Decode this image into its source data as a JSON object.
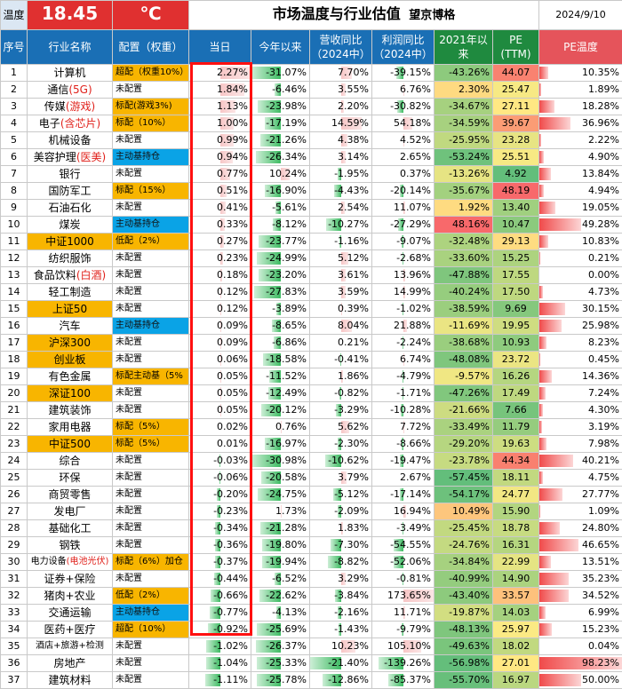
{
  "header": {
    "temp_label": "温度",
    "temp_value": "18.45",
    "temp_unit": "℃",
    "title": "市场温度与行业估值",
    "brand": "望京博格",
    "date": "2024/9/10"
  },
  "columns": [
    "序号",
    "行业名称",
    "配置（权重）",
    "当日",
    "今年以来",
    "营收同比\n（2024中）",
    "利润同比\n（2024中）",
    "2021年以来",
    "PE\n(TTM)",
    "PE温度"
  ],
  "colors": {
    "header_blue": "#1a6fb5",
    "header_green": "#1f8a3f",
    "header_red": "#e5545b",
    "alloc_orange": "#f8b500",
    "alloc_blue": "#0aa3e6",
    "highlight_box": "#ff1010"
  },
  "rows": [
    {
      "n": "1",
      "name": "计算机",
      "name_hl": "",
      "name_style": "",
      "alloc": "超配（权重10%）",
      "alloc_style": "orange",
      "day": "2.27%",
      "ytd": "-31.07%",
      "rev": "7.70%",
      "profit": "-39.15%",
      "since": "-43.26%",
      "pe": "44.07",
      "pet": "10.35%"
    },
    {
      "n": "2",
      "name": "通信",
      "name_hl": "(5G)",
      "name_style": "",
      "alloc": "未配置",
      "alloc_style": "",
      "day": "1.84%",
      "ytd": "-6.46%",
      "rev": "3.55%",
      "profit": "6.76%",
      "since": "2.30%",
      "pe": "25.47",
      "pet": "1.89%"
    },
    {
      "n": "3",
      "name": "传媒",
      "name_hl": "(游戏)",
      "name_style": "",
      "alloc": "标配(游戏3%)",
      "alloc_style": "orange",
      "day": "1.13%",
      "ytd": "-23.98%",
      "rev": "2.20%",
      "profit": "-30.82%",
      "since": "-34.67%",
      "pe": "27.11",
      "pet": "18.28%"
    },
    {
      "n": "4",
      "name": "电子",
      "name_hl": "(含芯片)",
      "name_style": "",
      "alloc": "标配（10%）",
      "alloc_style": "orange",
      "day": "1.00%",
      "ytd": "-17.19%",
      "rev": "14.59%",
      "profit": "54.18%",
      "since": "-34.59%",
      "pe": "39.67",
      "pet": "36.96%"
    },
    {
      "n": "5",
      "name": "机械设备",
      "name_hl": "",
      "name_style": "",
      "alloc": "未配置",
      "alloc_style": "",
      "day": "0.99%",
      "ytd": "-21.26%",
      "rev": "4.38%",
      "profit": "4.52%",
      "since": "-25.95%",
      "pe": "23.28",
      "pet": "2.22%"
    },
    {
      "n": "6",
      "name": "美容护理",
      "name_hl": "(医美)",
      "name_style": "",
      "alloc": "主动基持仓",
      "alloc_style": "blue",
      "day": "0.94%",
      "ytd": "-26.34%",
      "rev": "3.14%",
      "profit": "2.65%",
      "since": "-53.24%",
      "pe": "25.51",
      "pet": "4.90%"
    },
    {
      "n": "7",
      "name": "银行",
      "name_hl": "",
      "name_style": "",
      "alloc": "未配置",
      "alloc_style": "",
      "day": "0.77%",
      "ytd": "10.24%",
      "rev": "-1.95%",
      "profit": "0.37%",
      "since": "-13.26%",
      "pe": "4.92",
      "pet": "13.84%"
    },
    {
      "n": "8",
      "name": "国防军工",
      "name_hl": "",
      "name_style": "",
      "alloc": "标配（15%）",
      "alloc_style": "orange",
      "day": "0.51%",
      "ytd": "-16.90%",
      "rev": "-4.43%",
      "profit": "-20.14%",
      "since": "-35.67%",
      "pe": "48.19",
      "pet": "4.94%"
    },
    {
      "n": "9",
      "name": "石油石化",
      "name_hl": "",
      "name_style": "",
      "alloc": "未配置",
      "alloc_style": "",
      "day": "0.41%",
      "ytd": "-5.61%",
      "rev": "2.54%",
      "profit": "11.07%",
      "since": "1.92%",
      "pe": "13.40",
      "pet": "19.05%"
    },
    {
      "n": "10",
      "name": "煤炭",
      "name_hl": "",
      "name_style": "",
      "alloc": "主动基持仓",
      "alloc_style": "blue",
      "day": "0.33%",
      "ytd": "-8.12%",
      "rev": "-10.27%",
      "profit": "-27.29%",
      "since": "48.16%",
      "pe": "10.47",
      "pet": "49.28%"
    },
    {
      "n": "11",
      "name": "中证1000",
      "name_hl": "",
      "name_style": "orange",
      "alloc": "低配（2%）",
      "alloc_style": "orange",
      "day": "0.27%",
      "ytd": "-23.77%",
      "rev": "-1.16%",
      "profit": "-9.07%",
      "since": "-32.48%",
      "pe": "29.13",
      "pet": "10.83%"
    },
    {
      "n": "12",
      "name": "纺织服饰",
      "name_hl": "",
      "name_style": "",
      "alloc": "未配置",
      "alloc_style": "",
      "day": "0.23%",
      "ytd": "-24.99%",
      "rev": "5.12%",
      "profit": "-2.68%",
      "since": "-33.60%",
      "pe": "15.25",
      "pet": "0.21%"
    },
    {
      "n": "13",
      "name": "食品饮料",
      "name_hl": "(白酒)",
      "name_style": "",
      "alloc": "未配置",
      "alloc_style": "",
      "day": "0.18%",
      "ytd": "-23.20%",
      "rev": "3.61%",
      "profit": "13.96%",
      "since": "-47.88%",
      "pe": "17.55",
      "pet": "0.00%"
    },
    {
      "n": "14",
      "name": "轻工制造",
      "name_hl": "",
      "name_style": "",
      "alloc": "未配置",
      "alloc_style": "",
      "day": "0.12%",
      "ytd": "-27.83%",
      "rev": "3.59%",
      "profit": "14.99%",
      "since": "-40.24%",
      "pe": "17.50",
      "pet": "4.73%"
    },
    {
      "n": "15",
      "name": "上证50",
      "name_hl": "",
      "name_style": "orange",
      "alloc": "未配置",
      "alloc_style": "",
      "day": "0.12%",
      "ytd": "-3.89%",
      "rev": "0.39%",
      "profit": "-1.02%",
      "since": "-38.59%",
      "pe": "9.69",
      "pet": "30.15%"
    },
    {
      "n": "16",
      "name": "汽车",
      "name_hl": "",
      "name_style": "",
      "alloc": "主动基持仓",
      "alloc_style": "blue",
      "day": "0.09%",
      "ytd": "-8.65%",
      "rev": "8.04%",
      "profit": "21.88%",
      "since": "-11.69%",
      "pe": "19.95",
      "pet": "25.98%"
    },
    {
      "n": "17",
      "name": "沪深300",
      "name_hl": "",
      "name_style": "orange",
      "alloc": "未配置",
      "alloc_style": "",
      "day": "0.09%",
      "ytd": "-6.86%",
      "rev": "0.21%",
      "profit": "-2.24%",
      "since": "-38.68%",
      "pe": "10.93",
      "pet": "8.23%"
    },
    {
      "n": "18",
      "name": "创业板",
      "name_hl": "",
      "name_style": "orange",
      "alloc": "未配置",
      "alloc_style": "",
      "day": "0.06%",
      "ytd": "-18.58%",
      "rev": "-0.41%",
      "profit": "6.74%",
      "since": "-48.08%",
      "pe": "23.72",
      "pet": "0.45%"
    },
    {
      "n": "19",
      "name": "有色金属",
      "name_hl": "",
      "name_style": "",
      "alloc": "标配主动基（5%",
      "alloc_style": "orange",
      "day": "0.05%",
      "ytd": "-11.52%",
      "rev": "1.86%",
      "profit": "-4.79%",
      "since": "-9.57%",
      "pe": "16.26",
      "pet": "14.36%"
    },
    {
      "n": "20",
      "name": "深证100",
      "name_hl": "",
      "name_style": "orange",
      "alloc": "未配置",
      "alloc_style": "",
      "day": "0.05%",
      "ytd": "-12.49%",
      "rev": "-0.82%",
      "profit": "-1.71%",
      "since": "-47.26%",
      "pe": "17.49",
      "pet": "7.24%"
    },
    {
      "n": "21",
      "name": "建筑装饰",
      "name_hl": "",
      "name_style": "",
      "alloc": "未配置",
      "alloc_style": "",
      "day": "0.05%",
      "ytd": "-20.12%",
      "rev": "-3.29%",
      "profit": "-10.28%",
      "since": "-21.66%",
      "pe": "7.66",
      "pet": "4.30%"
    },
    {
      "n": "22",
      "name": "家用电器",
      "name_hl": "",
      "name_style": "",
      "alloc": "标配（5%）",
      "alloc_style": "orange",
      "day": "0.02%",
      "ytd": "0.76%",
      "rev": "5.62%",
      "profit": "7.72%",
      "since": "-33.49%",
      "pe": "11.79",
      "pet": "3.19%"
    },
    {
      "n": "23",
      "name": "中证500",
      "name_hl": "",
      "name_style": "orange",
      "alloc": "标配（5%）",
      "alloc_style": "orange",
      "day": "0.01%",
      "ytd": "-16.97%",
      "rev": "-2.30%",
      "profit": "-8.66%",
      "since": "-29.20%",
      "pe": "19.63",
      "pet": "7.98%"
    },
    {
      "n": "24",
      "name": "综合",
      "name_hl": "",
      "name_style": "",
      "alloc": "未配置",
      "alloc_style": "",
      "day": "-0.03%",
      "ytd": "-30.98%",
      "rev": "-10.62%",
      "profit": "-19.47%",
      "since": "-23.78%",
      "pe": "44.34",
      "pet": "40.21%"
    },
    {
      "n": "25",
      "name": "环保",
      "name_hl": "",
      "name_style": "",
      "alloc": "未配置",
      "alloc_style": "",
      "day": "-0.06%",
      "ytd": "-20.58%",
      "rev": "3.79%",
      "profit": "2.67%",
      "since": "-57.45%",
      "pe": "18.11",
      "pet": "4.75%"
    },
    {
      "n": "26",
      "name": "商贸零售",
      "name_hl": "",
      "name_style": "",
      "alloc": "未配置",
      "alloc_style": "",
      "day": "-0.20%",
      "ytd": "-24.75%",
      "rev": "-5.12%",
      "profit": "-17.14%",
      "since": "-54.17%",
      "pe": "24.77",
      "pet": "27.77%"
    },
    {
      "n": "27",
      "name": "发电厂",
      "name_hl": "",
      "name_style": "",
      "alloc": "未配置",
      "alloc_style": "",
      "day": "-0.23%",
      "ytd": "1.73%",
      "rev": "-2.09%",
      "profit": "16.94%",
      "since": "10.49%",
      "pe": "15.90",
      "pet": "1.09%"
    },
    {
      "n": "28",
      "name": "基础化工",
      "name_hl": "",
      "name_style": "",
      "alloc": "未配置",
      "alloc_style": "",
      "day": "-0.34%",
      "ytd": "-21.28%",
      "rev": "1.83%",
      "profit": "-3.49%",
      "since": "-25.45%",
      "pe": "18.78",
      "pet": "24.80%"
    },
    {
      "n": "29",
      "name": "钢铁",
      "name_hl": "",
      "name_style": "",
      "alloc": "未配置",
      "alloc_style": "",
      "day": "-0.36%",
      "ytd": "-19.80%",
      "rev": "-7.30%",
      "profit": "-54.55%",
      "since": "-24.76%",
      "pe": "16.31",
      "pet": "46.65%"
    },
    {
      "n": "30",
      "name": "电力设备",
      "name_hl": "(电池光伏)",
      "name_style": "small",
      "alloc": "标配（6%）加仓",
      "alloc_style": "orange",
      "day": "-0.37%",
      "ytd": "-19.94%",
      "rev": "-8.82%",
      "profit": "-52.06%",
      "since": "-34.84%",
      "pe": "22.99",
      "pet": "13.51%"
    },
    {
      "n": "31",
      "name": "证券+保险",
      "name_hl": "",
      "name_style": "",
      "alloc": "未配置",
      "alloc_style": "",
      "day": "-0.44%",
      "ytd": "-6.52%",
      "rev": "3.29%",
      "profit": "-0.81%",
      "since": "-40.99%",
      "pe": "14.90",
      "pet": "35.23%"
    },
    {
      "n": "32",
      "name": "猪肉+农业",
      "name_hl": "",
      "name_style": "",
      "alloc": "低配（2%）",
      "alloc_style": "orange",
      "day": "-0.66%",
      "ytd": "-22.62%",
      "rev": "-3.84%",
      "profit": "173.65%",
      "since": "-43.40%",
      "pe": "33.57",
      "pet": "34.52%"
    },
    {
      "n": "33",
      "name": "交通运输",
      "name_hl": "",
      "name_style": "",
      "alloc": "主动基持仓",
      "alloc_style": "blue",
      "day": "-0.77%",
      "ytd": "-4.13%",
      "rev": "-2.16%",
      "profit": "11.71%",
      "since": "-19.87%",
      "pe": "14.03",
      "pet": "6.99%"
    },
    {
      "n": "34",
      "name": "医药+医疗",
      "name_hl": "",
      "name_style": "",
      "alloc": "超配（10%）",
      "alloc_style": "orange",
      "day": "-0.92%",
      "ytd": "-25.69%",
      "rev": "-1.43%",
      "profit": "-9.79%",
      "since": "-48.13%",
      "pe": "25.97",
      "pet": "15.23%"
    },
    {
      "n": "35",
      "name": "酒店+旅游+检测",
      "name_hl": "",
      "name_style": "small",
      "alloc": "未配置",
      "alloc_style": "",
      "day": "-1.02%",
      "ytd": "-26.37%",
      "rev": "10.23%",
      "profit": "105.10%",
      "since": "-49.63%",
      "pe": "18.02",
      "pet": "0.04%"
    },
    {
      "n": "36",
      "name": "房地产",
      "name_hl": "",
      "name_style": "",
      "alloc": "未配置",
      "alloc_style": "",
      "day": "-1.04%",
      "ytd": "-25.33%",
      "rev": "-21.40%",
      "profit": "-139.26%",
      "since": "-56.98%",
      "pe": "27.01",
      "pet": "98.23%"
    },
    {
      "n": "37",
      "name": "建筑材料",
      "name_hl": "",
      "name_style": "",
      "alloc": "未配置",
      "alloc_style": "",
      "day": "-1.11%",
      "ytd": "-25.78%",
      "rev": "-12.86%",
      "profit": "-85.37%",
      "since": "-55.70%",
      "pe": "16.97",
      "pet": "50.00%"
    }
  ]
}
